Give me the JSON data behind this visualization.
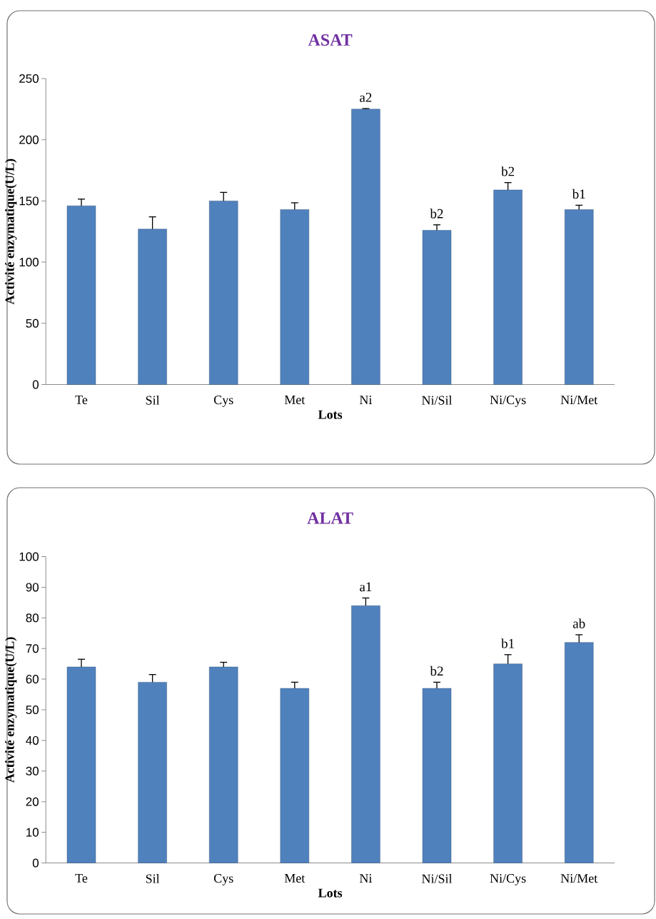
{
  "chart_data": [
    {
      "type": "bar",
      "title": "ASAT",
      "xlabel": "Lots",
      "ylabel": "Activité enzymatique(U/L)",
      "categories": [
        "Te",
        "Sil",
        "Cys",
        "Met",
        "Ni",
        "Ni/Sil",
        "Ni/Cys",
        "Ni/Met"
      ],
      "values": [
        146,
        127,
        150,
        143,
        225,
        126,
        159,
        143
      ],
      "errors": [
        5.5,
        10,
        7,
        5.5,
        0.5,
        4.5,
        6,
        3.5
      ],
      "color": "#4f81bd",
      "ylim": [
        0,
        250
      ],
      "yticks": [
        0,
        50,
        100,
        150,
        200,
        250
      ],
      "annotations": [
        {
          "text": "a2",
          "x": "Ni",
          "y": 225
        },
        {
          "text": "b2",
          "x": "Ni/Sil",
          "y": 126
        },
        {
          "text": "b2",
          "x": "Ni/Cys",
          "y": 159
        },
        {
          "text": "b1",
          "x": "Ni/Met",
          "y": 143
        }
      ]
    },
    {
      "type": "bar",
      "title": "ALAT",
      "xlabel": "Lots",
      "ylabel": "Activité enzymatique(U/L)",
      "categories": [
        "Te",
        "Sil",
        "Cys",
        "Met",
        "Ni",
        "Ni/Sil",
        "Ni/Cys",
        "Ni/Met"
      ],
      "values": [
        64,
        59,
        64,
        57,
        84,
        57,
        65,
        72
      ],
      "errors": [
        2.5,
        2.5,
        1.5,
        2,
        2.5,
        2,
        3,
        2.5
      ],
      "color": "#4f81bd",
      "ylim": [
        0,
        100
      ],
      "yticks": [
        0,
        10,
        20,
        30,
        40,
        50,
        60,
        70,
        80,
        90,
        100
      ],
      "annotations": [
        {
          "text": "a1",
          "x": "Ni",
          "y": 84
        },
        {
          "text": "b2",
          "x": "Ni/Sil",
          "y": 57
        },
        {
          "text": "b1",
          "x": "Ni/Cys",
          "y": 65
        },
        {
          "text": "ab",
          "x": "Ni/Met",
          "y": 72
        }
      ]
    }
  ]
}
